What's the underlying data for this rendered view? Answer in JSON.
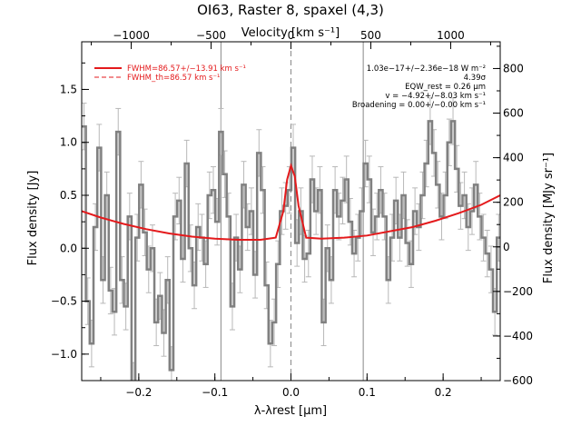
{
  "chart_data": {
    "type": "line",
    "title": "OI63, Raster 8, spaxel (4,3)",
    "xlabel": "λ-λrest [μm]",
    "ylabel": "Flux density [Jy]",
    "x2label": "Velocity [km s⁻¹]",
    "y2label": "Flux density [MJy sr⁻¹]",
    "xlim": [
      -0.275,
      0.275
    ],
    "ylim": [
      -1.25,
      1.95
    ],
    "x2lim": [
      -1310,
      1310
    ],
    "y2lim": [
      -600,
      920
    ],
    "x_ticks": [
      -0.2,
      -0.1,
      0.0,
      0.1,
      0.2
    ],
    "x_tick_labels": [
      "−0.2",
      "−0.1",
      "0.0",
      "0.1",
      "0.2"
    ],
    "y_ticks": [
      -1.0,
      -0.5,
      0.0,
      0.5,
      1.0,
      1.5
    ],
    "y_tick_labels": [
      "−1.0",
      "−0.5",
      "0.0",
      "0.5",
      "1.0",
      "1.5"
    ],
    "x2_ticks": [
      -1000,
      -500,
      0,
      500,
      1000
    ],
    "x2_tick_labels": [
      "−1000",
      "−500",
      "0",
      "500",
      "1000"
    ],
    "y2_ticks": [
      -600,
      -400,
      -200,
      0,
      200,
      400,
      600,
      800
    ],
    "y2_tick_labels": [
      "−600",
      "−400",
      "−200",
      "0",
      "200",
      "400",
      "600",
      "800"
    ],
    "vertical_lines": [
      {
        "x": -0.092,
        "style": "solid",
        "color": "#888888"
      },
      {
        "x": 0.0,
        "style": "dashed",
        "color": "#888888"
      },
      {
        "x": 0.095,
        "style": "solid",
        "color": "#888888"
      }
    ],
    "legend_position": "top-left",
    "legend": [
      {
        "label": "FWHM=86.57+/−13.91 km s⁻¹",
        "color": "#e41a1c",
        "style": "solid"
      },
      {
        "label": "FWHM_th=86.57 km s⁻¹",
        "color": "#e41a1c",
        "style": "dashed"
      }
    ],
    "annotations": [
      "1.03e−17+/−2.36e−18 W m⁻²",
      "4.39σ",
      "EQW_rest = 0.26 μm",
      "v = −4.92+/−8.03 km s⁻¹",
      "Broadening = 0.00+/−0.00 km s⁻¹"
    ],
    "series": [
      {
        "name": "",
        "style": "step",
        "color": "#808080",
        "x": [
          -0.272,
          -0.267,
          -0.262,
          -0.257,
          -0.252,
          -0.247,
          -0.242,
          -0.237,
          -0.232,
          -0.227,
          -0.222,
          -0.217,
          -0.212,
          -0.207,
          -0.202,
          -0.197,
          -0.192,
          -0.187,
          -0.182,
          -0.177,
          -0.172,
          -0.167,
          -0.162,
          -0.157,
          -0.152,
          -0.147,
          -0.142,
          -0.137,
          -0.132,
          -0.127,
          -0.122,
          -0.117,
          -0.112,
          -0.107,
          -0.102,
          -0.097,
          -0.092,
          -0.087,
          -0.082,
          -0.077,
          -0.072,
          -0.067,
          -0.062,
          -0.057,
          -0.052,
          -0.047,
          -0.042,
          -0.037,
          -0.032,
          -0.027,
          -0.022,
          -0.017,
          -0.012,
          -0.007,
          -0.002,
          0.003,
          0.008,
          0.013,
          0.018,
          0.023,
          0.028,
          0.033,
          0.038,
          0.043,
          0.048,
          0.053,
          0.058,
          0.063,
          0.068,
          0.073,
          0.078,
          0.083,
          0.088,
          0.093,
          0.098,
          0.103,
          0.108,
          0.113,
          0.118,
          0.123,
          0.128,
          0.133,
          0.138,
          0.143,
          0.148,
          0.153,
          0.158,
          0.163,
          0.168,
          0.173,
          0.178,
          0.183,
          0.188,
          0.193,
          0.198,
          0.203,
          0.208,
          0.213,
          0.218,
          0.223,
          0.228,
          0.233,
          0.238,
          0.243,
          0.248,
          0.253,
          0.258,
          0.263,
          0.268,
          0.273
        ],
        "y": [
          1.15,
          -0.5,
          -0.9,
          0.2,
          0.95,
          -0.3,
          0.5,
          -0.4,
          -0.6,
          1.1,
          -0.3,
          -0.55,
          0.3,
          -1.3,
          0.1,
          0.6,
          0.15,
          -0.2,
          0.0,
          -0.7,
          -0.45,
          -0.8,
          -0.3,
          -1.15,
          0.3,
          0.45,
          -0.1,
          0.8,
          0.0,
          -0.35,
          0.2,
          0.1,
          -0.15,
          0.5,
          0.55,
          0.25,
          1.1,
          0.7,
          0.3,
          -0.55,
          0.1,
          -0.2,
          0.6,
          0.2,
          0.35,
          -0.25,
          0.9,
          0.55,
          -0.35,
          -0.9,
          -0.7,
          -0.15,
          0.35,
          0.4,
          0.55,
          0.95,
          0.05,
          0.35,
          -0.1,
          -0.05,
          0.65,
          0.35,
          0.55,
          -0.7,
          0.0,
          -0.3,
          0.55,
          0.3,
          0.45,
          0.65,
          0.25,
          -0.05,
          0.1,
          0.35,
          0.8,
          0.65,
          0.15,
          0.3,
          0.55,
          0.3,
          -0.3,
          0.1,
          0.45,
          0.1,
          0.5,
          0.05,
          -0.15,
          0.35,
          0.2,
          0.5,
          0.8,
          1.2,
          0.9,
          0.6,
          0.3,
          0.5,
          1.0,
          1.2,
          0.75,
          0.4,
          0.5,
          0.2,
          0.35,
          0.6,
          0.3,
          0.1,
          -0.05,
          -0.2,
          -0.6,
          0.1
        ],
        "error": 0.22
      },
      {
        "name": "",
        "style": "solid",
        "color": "#e41a1c",
        "x": [
          -0.275,
          -0.25,
          -0.22,
          -0.19,
          -0.16,
          -0.13,
          -0.1,
          -0.07,
          -0.04,
          -0.02,
          -0.01,
          -0.005,
          0.0,
          0.005,
          0.01,
          0.02,
          0.04,
          0.07,
          0.1,
          0.13,
          0.16,
          0.19,
          0.22,
          0.25,
          0.275
        ],
        "y": [
          0.35,
          0.29,
          0.23,
          0.18,
          0.14,
          0.11,
          0.09,
          0.08,
          0.08,
          0.1,
          0.35,
          0.65,
          0.78,
          0.68,
          0.4,
          0.1,
          0.09,
          0.1,
          0.12,
          0.16,
          0.2,
          0.26,
          0.33,
          0.41,
          0.5
        ]
      },
      {
        "name": "",
        "style": "dashed",
        "color": "#e41a1c",
        "x": [
          -0.275,
          -0.25,
          -0.22,
          -0.19,
          -0.16,
          -0.13,
          -0.1,
          -0.07,
          -0.04,
          -0.02,
          -0.01,
          -0.005,
          0.0,
          0.005,
          0.01,
          0.02,
          0.04,
          0.07,
          0.1,
          0.13,
          0.16,
          0.19,
          0.22,
          0.25,
          0.275
        ],
        "y": [
          0.35,
          0.29,
          0.23,
          0.18,
          0.14,
          0.11,
          0.09,
          0.08,
          0.08,
          0.1,
          0.35,
          0.65,
          0.78,
          0.68,
          0.4,
          0.1,
          0.09,
          0.1,
          0.12,
          0.16,
          0.2,
          0.26,
          0.33,
          0.41,
          0.5
        ]
      }
    ]
  }
}
